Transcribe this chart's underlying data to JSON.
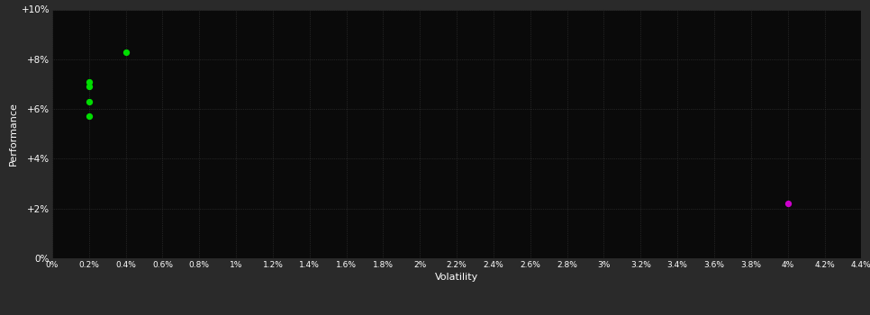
{
  "background_color": "#2a2a2a",
  "plot_bg_color": "#0a0a0a",
  "grid_color": "#3a3a3a",
  "text_color": "#ffffff",
  "xlabel": "Volatility",
  "ylabel": "Performance",
  "xlim": [
    0,
    0.044
  ],
  "ylim": [
    0,
    0.1
  ],
  "xticks": [
    0.0,
    0.002,
    0.004,
    0.006,
    0.008,
    0.01,
    0.012,
    0.014,
    0.016,
    0.018,
    0.02,
    0.022,
    0.024,
    0.026,
    0.028,
    0.03,
    0.032,
    0.034,
    0.036,
    0.038,
    0.04,
    0.042,
    0.044
  ],
  "xtick_labels": [
    "0%",
    "0.2%",
    "0.4%",
    "0.6%",
    "0.8%",
    "1%",
    "1.2%",
    "1.4%",
    "1.6%",
    "1.8%",
    "2%",
    "2.2%",
    "2.4%",
    "2.6%",
    "2.8%",
    "3%",
    "3.2%",
    "3.4%",
    "3.6%",
    "3.8%",
    "4%",
    "4.2%",
    "4.4%"
  ],
  "yticks": [
    0.0,
    0.02,
    0.04,
    0.06,
    0.08,
    0.1
  ],
  "ytick_labels": [
    "0%",
    "+2%",
    "+4%",
    "+6%",
    "+8%",
    "+10%"
  ],
  "green_points": [
    [
      0.004,
      0.083
    ],
    [
      0.002,
      0.071
    ],
    [
      0.002,
      0.069
    ],
    [
      0.002,
      0.063
    ],
    [
      0.002,
      0.057
    ]
  ],
  "magenta_points": [
    [
      0.04,
      0.022
    ]
  ],
  "green_color": "#00dd00",
  "magenta_color": "#cc00cc",
  "point_size": 18
}
